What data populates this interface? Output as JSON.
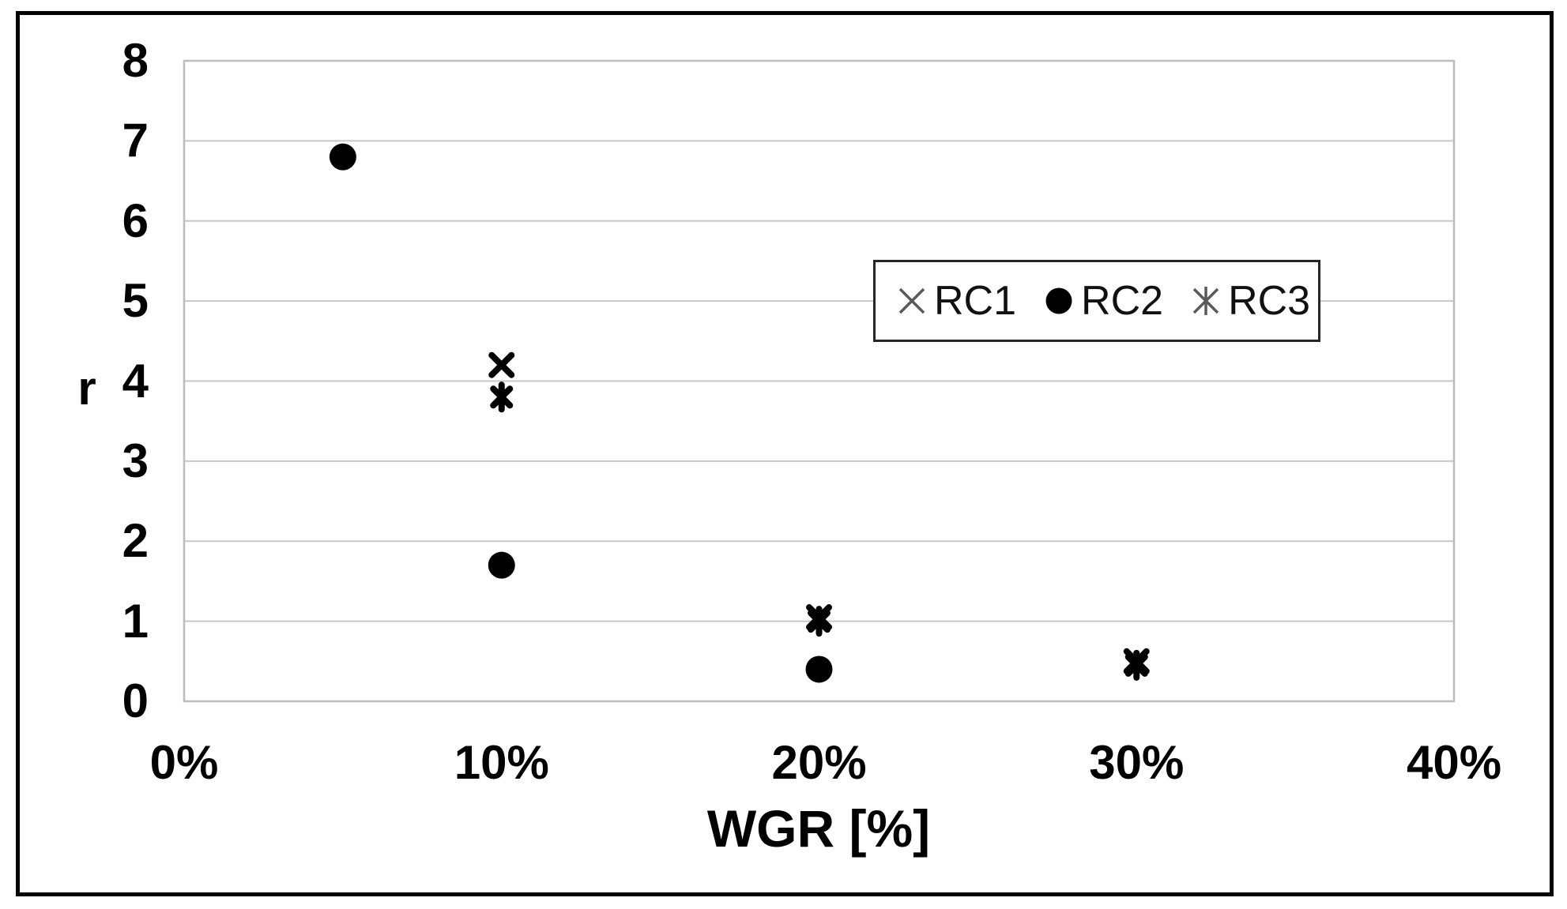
{
  "chart_data": {
    "type": "scatter",
    "title": "",
    "xlabel": "WGR [%]",
    "ylabel": "r",
    "xlim": [
      0,
      40
    ],
    "ylim": [
      0,
      8
    ],
    "grid": "horizontal",
    "legend_position": "inside-upper-right",
    "xticks": [
      {
        "value": 0,
        "label": "0%"
      },
      {
        "value": 10,
        "label": "10%"
      },
      {
        "value": 20,
        "label": "20%"
      },
      {
        "value": 30,
        "label": "30%"
      },
      {
        "value": 40,
        "label": "40%"
      }
    ],
    "yticks": [
      {
        "value": 0,
        "label": "0"
      },
      {
        "value": 1,
        "label": "1"
      },
      {
        "value": 2,
        "label": "2"
      },
      {
        "value": 3,
        "label": "3"
      },
      {
        "value": 4,
        "label": "4"
      },
      {
        "value": 5,
        "label": "5"
      },
      {
        "value": 6,
        "label": "6"
      },
      {
        "value": 7,
        "label": "7"
      },
      {
        "value": 8,
        "label": "8"
      }
    ],
    "series": [
      {
        "name": "RC1",
        "marker": "x",
        "color": "#000000",
        "points": [
          {
            "x": 10,
            "y": 4.2
          },
          {
            "x": 20,
            "y": 1.05
          },
          {
            "x": 30,
            "y": 0.5
          }
        ]
      },
      {
        "name": "RC2",
        "marker": "circle",
        "color": "#000000",
        "points": [
          {
            "x": 5,
            "y": 6.8
          },
          {
            "x": 10,
            "y": 1.7
          },
          {
            "x": 20,
            "y": 0.4
          }
        ]
      },
      {
        "name": "RC3",
        "marker": "star",
        "color": "#000000",
        "points": [
          {
            "x": 10,
            "y": 3.8
          },
          {
            "x": 20,
            "y": 1.0
          },
          {
            "x": 30,
            "y": 0.45
          }
        ]
      }
    ],
    "colors": {
      "marker": "#000000",
      "gridline": "#c8c8c8",
      "plot_border": "#bdbdbd",
      "legend_border": "#262626",
      "legend_marker_stroke": "#595959",
      "figure_border": "#000000",
      "background": "#ffffff"
    }
  }
}
